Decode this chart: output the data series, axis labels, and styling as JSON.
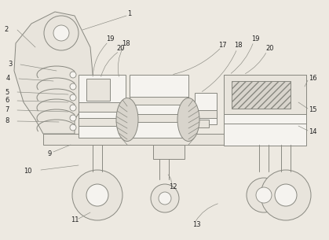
{
  "bg_color": "#ede9e1",
  "line_color": "#888880",
  "fill_light": "#e8e4dc",
  "fill_med": "#d8d4cc",
  "fill_white": "#f5f3ef"
}
